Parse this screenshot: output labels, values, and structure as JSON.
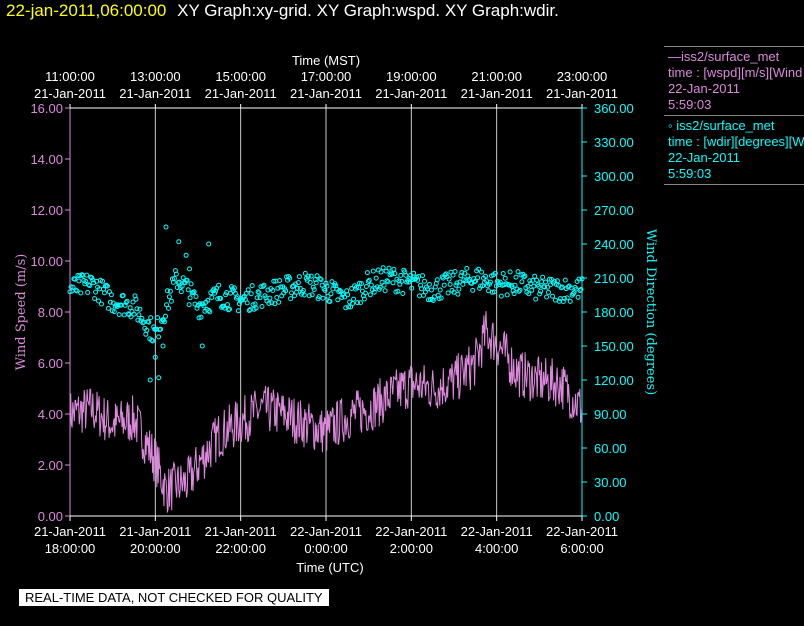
{
  "header": {
    "timestamp": "22-jan-2011,06:00:00",
    "graph_titles": "XY Graph:xy-grid.  XY Graph:wspd.  XY Graph:wdir."
  },
  "legend": [
    {
      "line1": "—iss2/surface_met",
      "line2": "time : [wspd][m/s][Wind",
      "line3": "22-Jan-2011",
      "line4": "5:59:03",
      "color": "#dd88dd"
    },
    {
      "line1": "◦ iss2/surface_met",
      "line2": "time : [wdir][degrees][W",
      "line3": "22-Jan-2011",
      "line4": "5:59:03",
      "color": "#00ffff"
    }
  ],
  "disclaimer": "REAL-TIME DATA, NOT CHECKED FOR QUALITY",
  "chart_data": {
    "type": "line",
    "top_axis_label": "Time (MST)",
    "bottom_axis_label": "Time (UTC)",
    "ylabel_left": "Wind Speed (m/s)",
    "ylabel_right": "Wind Direction (degrees)",
    "x_range_utc_hours": [
      18,
      30
    ],
    "y_left_range": [
      0,
      16
    ],
    "y_right_range": [
      0,
      360
    ],
    "grid_x": true,
    "legend_position": "right",
    "top_ticks": [
      {
        "time": "11:00:00",
        "date": "21-Jan-2011"
      },
      {
        "time": "13:00:00",
        "date": "21-Jan-2011"
      },
      {
        "time": "15:00:00",
        "date": "21-Jan-2011"
      },
      {
        "time": "17:00:00",
        "date": "21-Jan-2011"
      },
      {
        "time": "19:00:00",
        "date": "21-Jan-2011"
      },
      {
        "time": "21:00:00",
        "date": "21-Jan-2011"
      },
      {
        "time": "23:00:00",
        "date": "21-Jan-2011"
      }
    ],
    "bottom_ticks": [
      {
        "date": "21-Jan-2011",
        "time": "18:00:00"
      },
      {
        "date": "21-Jan-2011",
        "time": "20:00:00"
      },
      {
        "date": "21-Jan-2011",
        "time": "22:00:00"
      },
      {
        "date": "22-Jan-2011",
        "time": "0:00:00"
      },
      {
        "date": "22-Jan-2011",
        "time": "2:00:00"
      },
      {
        "date": "22-Jan-2011",
        "time": "4:00:00"
      },
      {
        "date": "22-Jan-2011",
        "time": "6:00:00"
      }
    ],
    "left_ticks": [
      "0.00",
      "2.00",
      "4.00",
      "6.00",
      "8.00",
      "10.00",
      "12.00",
      "14.00",
      "16.00"
    ],
    "right_ticks": [
      "0.00",
      "30.00",
      "60.00",
      "90.00",
      "120.00",
      "150.00",
      "180.00",
      "210.00",
      "240.00",
      "270.00",
      "300.00",
      "330.00",
      "360.00"
    ],
    "series": [
      {
        "name": "iss2/surface_met wspd",
        "axis": "left",
        "color": "#dd88dd",
        "style": "line",
        "x_utc_hours": [
          18.0,
          18.5,
          19.0,
          19.5,
          20.0,
          20.25,
          20.5,
          20.75,
          21.0,
          21.5,
          22.0,
          22.5,
          23.0,
          23.5,
          24.0,
          24.5,
          25.0,
          25.5,
          26.0,
          26.5,
          27.0,
          27.5,
          27.75,
          28.0,
          28.5,
          29.0,
          29.5,
          30.0
        ],
        "values": [
          4.0,
          4.2,
          3.6,
          3.8,
          2.2,
          1.0,
          1.2,
          1.3,
          2.0,
          3.2,
          3.7,
          4.2,
          4.0,
          3.6,
          3.3,
          3.9,
          4.2,
          4.7,
          5.2,
          5.0,
          5.3,
          6.0,
          7.2,
          6.8,
          5.6,
          5.3,
          5.2,
          4.2
        ]
      },
      {
        "name": "iss2/surface_met wdir",
        "axis": "right",
        "color": "#00ffff",
        "style": "scatter",
        "x_utc_hours": [
          18.0,
          18.5,
          19.0,
          19.5,
          20.0,
          20.25,
          20.5,
          20.75,
          21.0,
          21.5,
          22.0,
          22.5,
          23.0,
          23.5,
          24.0,
          24.5,
          25.0,
          25.5,
          26.0,
          26.5,
          27.0,
          27.5,
          28.0,
          28.5,
          29.0,
          29.5,
          30.0
        ],
        "values": [
          200,
          205,
          190,
          185,
          160,
          185,
          210,
          200,
          185,
          195,
          190,
          195,
          200,
          205,
          200,
          190,
          205,
          210,
          205,
          200,
          205,
          210,
          205,
          205,
          200,
          200,
          200
        ],
        "outliers": [
          [
            19.88,
            120
          ],
          [
            20.08,
            122
          ],
          [
            20.25,
            255
          ],
          [
            20.55,
            242
          ],
          [
            20.72,
            230
          ],
          [
            20.8,
            218
          ],
          [
            21.25,
            240
          ],
          [
            20.0,
            140
          ],
          [
            20.18,
            150
          ],
          [
            21.1,
            150
          ]
        ]
      }
    ]
  }
}
